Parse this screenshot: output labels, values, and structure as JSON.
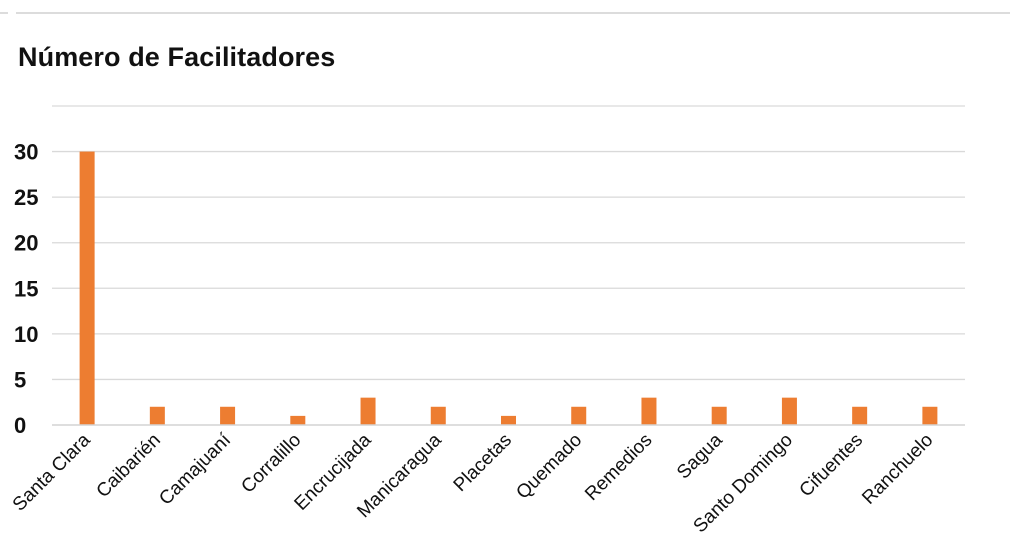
{
  "chart_data": {
    "type": "bar",
    "title": "Número de Facilitadores",
    "categories": [
      "Santa Clara",
      "Caibarién",
      "Camajuaní",
      "Corralillo",
      "Encrucijada",
      "Manicaragua",
      "Placetas",
      "Quemado",
      "Remedios",
      "Sagua",
      "Santo Domingo",
      "Cifuentes",
      "Ranchuelo"
    ],
    "values": [
      30,
      2,
      2,
      1,
      3,
      2,
      1,
      2,
      3,
      2,
      3,
      2,
      2
    ],
    "ylim": [
      0,
      35
    ],
    "yticks": [
      0,
      5,
      10,
      15,
      20,
      25,
      30
    ],
    "ytick_labels": [
      "0",
      "5",
      "10",
      "15",
      "20",
      "25",
      "30"
    ],
    "grid": true,
    "legend": "none",
    "bar_color": "#ED7D31"
  }
}
